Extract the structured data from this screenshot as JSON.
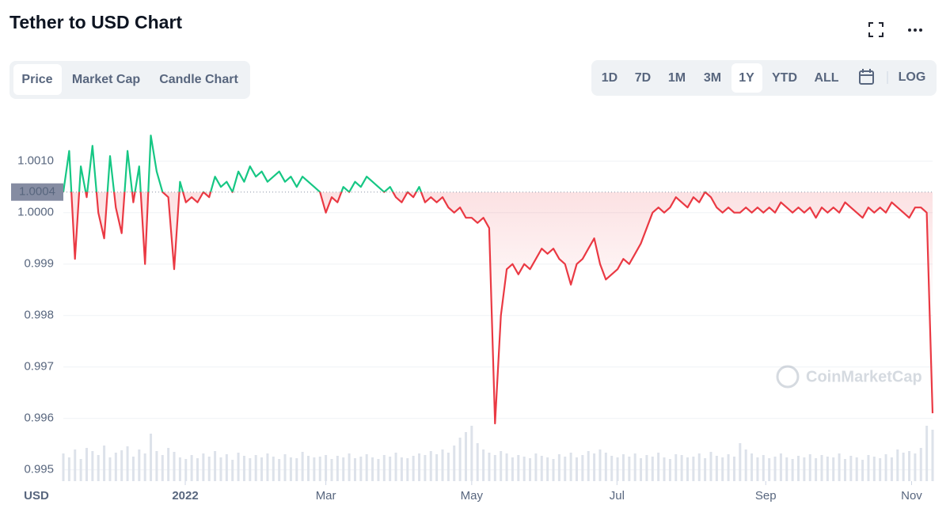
{
  "header": {
    "title": "Tether to USD Chart"
  },
  "tabs": {
    "items": [
      "Price",
      "Market Cap",
      "Candle Chart"
    ],
    "active": 0
  },
  "ranges": {
    "items": [
      "1D",
      "7D",
      "1M",
      "3M",
      "1Y",
      "YTD",
      "ALL"
    ],
    "active": 4
  },
  "log_button": "LOG",
  "chart_data": {
    "type": "line",
    "currency_label": "USD",
    "watermark": "CoinMarketCap",
    "up_color": "#16c784",
    "down_color": "#ea3943",
    "grid": true,
    "baseline": {
      "value": 1.0004,
      "label": "1.0004"
    },
    "xlim": [
      0,
      149
    ],
    "xticks": [
      {
        "value": 20.9,
        "label": "2022"
      },
      {
        "value": 45,
        "label": "Mar"
      },
      {
        "value": 70,
        "label": "May"
      },
      {
        "value": 94.9,
        "label": "Jul"
      },
      {
        "value": 120.4,
        "label": "Sep"
      },
      {
        "value": 145.4,
        "label": "Nov"
      }
    ],
    "ylim": [
      0.99478,
      1.00198
    ],
    "yticks": [
      0.995,
      0.996,
      0.997,
      0.998,
      0.999,
      {
        "value": 1,
        "label": "1.0000"
      },
      {
        "value": 1.001,
        "label": "1.0010"
      }
    ],
    "values": [
      1.0004,
      1.0012,
      0.9991,
      1.0009,
      1.0003,
      1.0013,
      1.0,
      0.9995,
      1.0011,
      1.0001,
      0.9996,
      1.0012,
      1.0002,
      1.0009,
      0.999,
      1.0015,
      1.0008,
      1.0004,
      1.0003,
      0.9989,
      1.0006,
      1.0002,
      1.0003,
      1.0002,
      1.0004,
      1.0003,
      1.0007,
      1.0005,
      1.0006,
      1.0004,
      1.0008,
      1.0006,
      1.0009,
      1.0007,
      1.0008,
      1.0006,
      1.0007,
      1.0008,
      1.0006,
      1.0007,
      1.0005,
      1.0007,
      1.0006,
      1.0005,
      1.0004,
      1.0,
      1.0003,
      1.0002,
      1.0005,
      1.0004,
      1.0006,
      1.0005,
      1.0007,
      1.0006,
      1.0005,
      1.0004,
      1.0005,
      1.0003,
      1.0002,
      1.0004,
      1.0003,
      1.0005,
      1.0002,
      1.0003,
      1.0002,
      1.0003,
      1.0001,
      1.0,
      1.0001,
      0.9999,
      0.9999,
      0.9998,
      0.9999,
      0.9997,
      0.9959,
      0.998,
      0.9989,
      0.999,
      0.9988,
      0.999,
      0.9989,
      0.9991,
      0.9993,
      0.9992,
      0.9993,
      0.9991,
      0.999,
      0.9986,
      0.999,
      0.9991,
      0.9993,
      0.9995,
      0.999,
      0.9987,
      0.9988,
      0.9989,
      0.9991,
      0.999,
      0.9992,
      0.9994,
      0.9997,
      1.0,
      1.0001,
      1.0,
      1.0001,
      1.0003,
      1.0002,
      1.0001,
      1.0003,
      1.0002,
      1.0004,
      1.0003,
      1.0001,
      1.0,
      1.0001,
      1.0,
      1.0,
      1.0001,
      1.0,
      1.0001,
      1.0,
      1.0001,
      1.0,
      1.0002,
      1.0001,
      1.0,
      1.0001,
      1.0,
      1.0001,
      0.9999,
      1.0001,
      1.0,
      1.0001,
      1.0,
      1.0002,
      1.0001,
      1.0,
      0.9999,
      1.0001,
      1.0,
      1.0001,
      1.0,
      1.0002,
      1.0001,
      1.0,
      0.9999,
      1.0001,
      1.0001,
      1.0,
      0.9961
    ],
    "volume_lim": [
      0,
      100
    ],
    "volume": [
      35,
      30,
      40,
      28,
      42,
      38,
      33,
      45,
      30,
      36,
      39,
      44,
      31,
      40,
      35,
      60,
      38,
      33,
      42,
      37,
      30,
      28,
      33,
      29,
      35,
      31,
      38,
      30,
      34,
      27,
      36,
      32,
      29,
      33,
      30,
      35,
      31,
      28,
      34,
      30,
      29,
      37,
      32,
      30,
      31,
      33,
      28,
      32,
      30,
      35,
      29,
      31,
      34,
      30,
      28,
      33,
      31,
      36,
      30,
      29,
      32,
      35,
      33,
      38,
      34,
      40,
      36,
      45,
      55,
      62,
      70,
      48,
      40,
      36,
      33,
      38,
      35,
      30,
      33,
      31,
      29,
      35,
      32,
      30,
      28,
      34,
      31,
      36,
      30,
      33,
      38,
      35,
      40,
      36,
      32,
      30,
      34,
      31,
      35,
      29,
      33,
      31,
      36,
      30,
      28,
      34,
      33,
      30,
      31,
      35,
      29,
      37,
      32,
      30,
      34,
      31,
      48,
      40,
      35,
      30,
      33,
      29,
      31,
      35,
      30,
      28,
      32,
      30,
      34,
      29,
      33,
      31,
      30,
      35,
      28,
      32,
      30,
      27,
      33,
      31,
      29,
      34,
      30,
      40,
      36,
      38,
      35,
      42,
      70,
      65
    ]
  }
}
